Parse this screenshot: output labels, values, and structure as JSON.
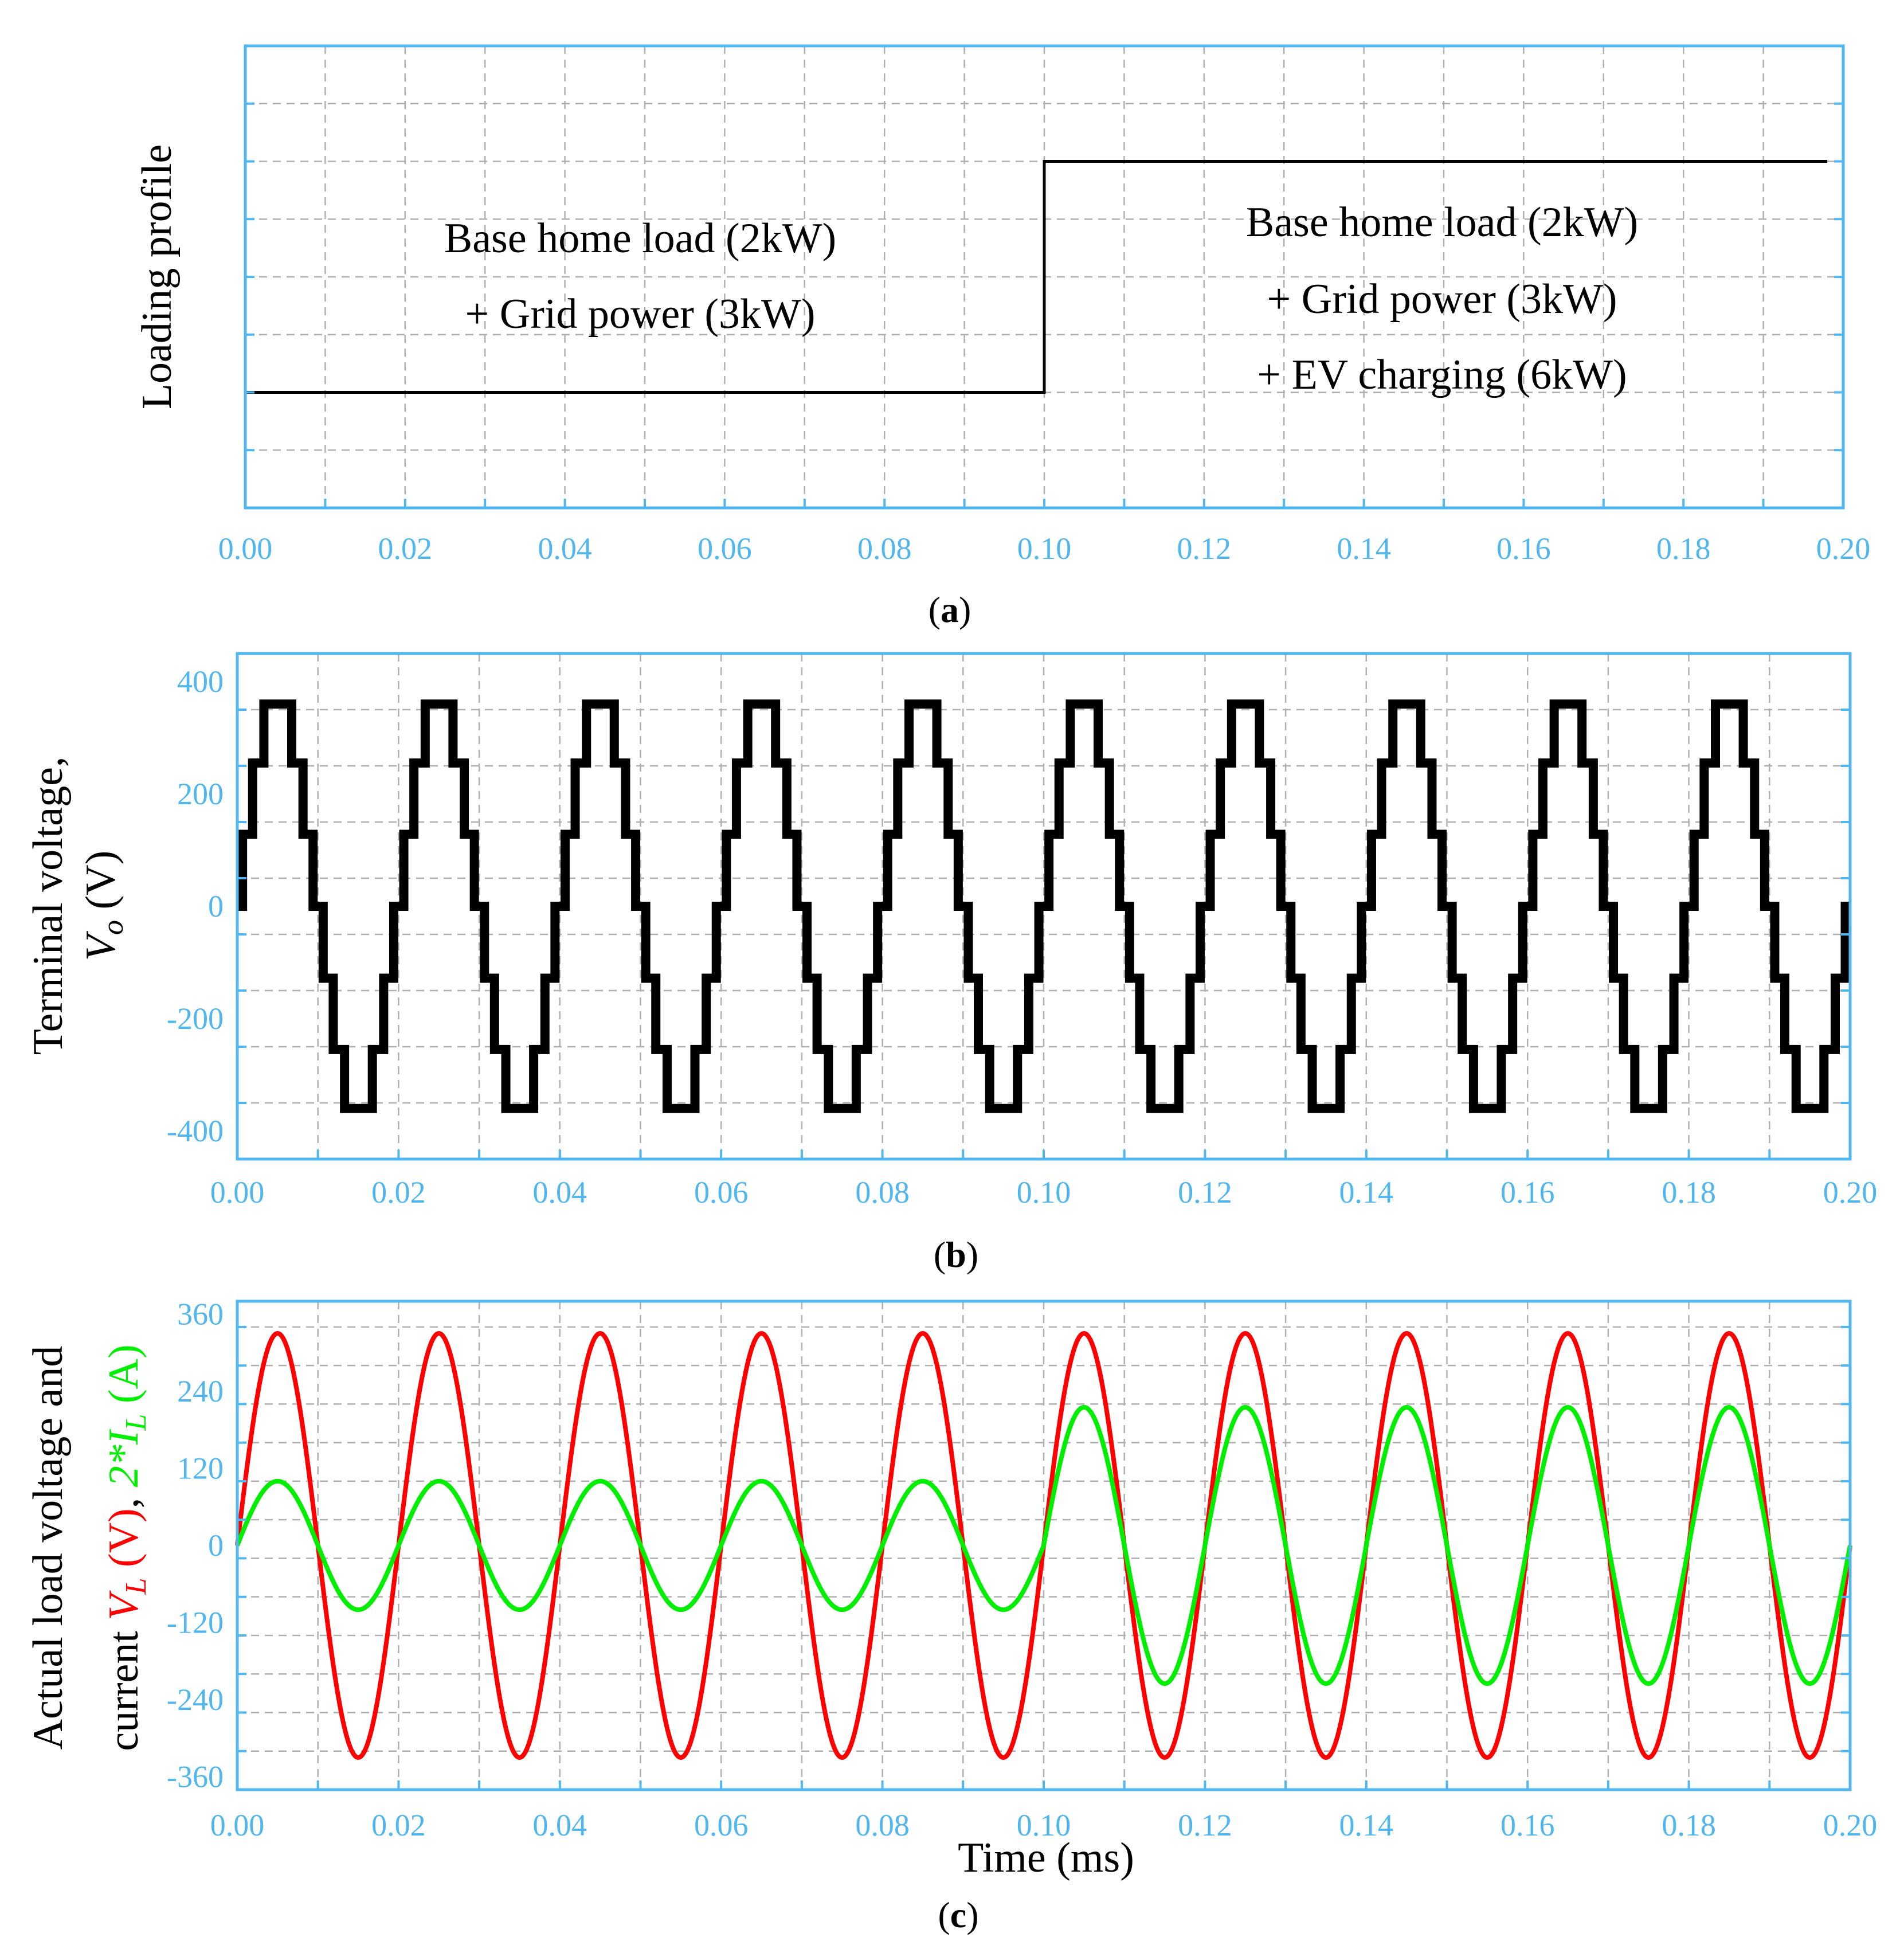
{
  "chart_data": [
    {
      "panel": "a",
      "type": "line",
      "caption": "a",
      "ylabel": "Loading profile",
      "xlabel": "",
      "xlim": [
        0,
        0.2
      ],
      "ylim": [
        0,
        8
      ],
      "xticks": [
        "0.00",
        "0.02",
        "0.04",
        "0.06",
        "0.08",
        "0.10",
        "0.12",
        "0.14",
        "0.16",
        "0.18",
        "0.20"
      ],
      "yticks": [],
      "grid": true,
      "series": [
        {
          "name": "Loading profile",
          "color": "#000000",
          "x": [
            0,
            0.1,
            0.1,
            0.198
          ],
          "y": [
            2,
            2,
            6,
            6
          ]
        }
      ],
      "annotations": [
        {
          "lines": [
            "Base home load (2kW)",
            "+ Grid power (3kW)"
          ]
        },
        {
          "lines": [
            "Base home load (2kW)",
            "+ Grid power (3kW)",
            "+ EV charging (6kW)"
          ]
        }
      ]
    },
    {
      "panel": "b",
      "type": "line",
      "caption": "b",
      "ylabel_lines": [
        "Terminal voltage,",
        "Vo (V)"
      ],
      "xlabel": "",
      "xlim": [
        0,
        0.2
      ],
      "ylim": [
        -450,
        450
      ],
      "xticks": [
        "0.00",
        "0.02",
        "0.04",
        "0.06",
        "0.08",
        "0.10",
        "0.12",
        "0.14",
        "0.16",
        "0.18",
        "0.20"
      ],
      "yticks": [
        400,
        200,
        0,
        -200,
        -400
      ],
      "grid": true,
      "series": [
        {
          "name": "Vo",
          "color": "#000000",
          "kind": "7-level staircase, 50 Hz",
          "levels": [
            0,
            128,
            255,
            360
          ],
          "frequency_hz": 50
        }
      ]
    },
    {
      "panel": "c",
      "type": "line",
      "caption": "c",
      "ylabel_lines": [
        "Actual load voltage and",
        "current VL (V), 2*IL (A)"
      ],
      "xlabel": "Time (ms)",
      "xlim": [
        0,
        0.2
      ],
      "ylim": [
        -380,
        380
      ],
      "xticks": [
        "0.00",
        "0.02",
        "0.04",
        "0.06",
        "0.08",
        "0.10",
        "0.12",
        "0.14",
        "0.16",
        "0.18",
        "0.20"
      ],
      "yticks": [
        360,
        240,
        120,
        0,
        -120,
        -240,
        -360
      ],
      "grid": true,
      "series": [
        {
          "name": "VL",
          "color": "#ff0000",
          "amplitude": 330,
          "frequency_hz": 50
        },
        {
          "name": "2*IL",
          "color": "#00ee00",
          "amplitude_before": 100,
          "amplitude_after": 215,
          "change_at": 0.1,
          "frequency_hz": 50
        }
      ]
    }
  ]
}
